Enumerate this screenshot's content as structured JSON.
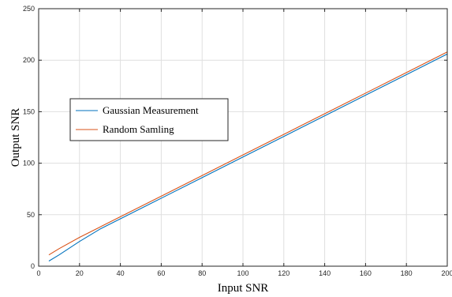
{
  "chart_data": {
    "type": "line",
    "title": "",
    "xlabel": "Input SNR",
    "ylabel": "Output SNR",
    "xlim": [
      0,
      200
    ],
    "ylim": [
      0,
      250
    ],
    "xticks": [
      0,
      20,
      40,
      60,
      80,
      100,
      120,
      140,
      160,
      180,
      200
    ],
    "yticks": [
      0,
      50,
      100,
      150,
      200,
      250
    ],
    "xtick_labels": [
      "0",
      "20",
      "40",
      "60",
      "80",
      "100",
      "120",
      "140",
      "160",
      "180",
      "200"
    ],
    "ytick_labels": [
      "0",
      "50",
      "100",
      "150",
      "200",
      "250"
    ],
    "grid": true,
    "legend_position": "left-middle",
    "series": [
      {
        "name": "Gaussian Measurement",
        "color": "#0072BD",
        "x": [
          5,
          10,
          20,
          30,
          40,
          60,
          80,
          100,
          120,
          140,
          160,
          180,
          200
        ],
        "y": [
          5,
          11,
          24,
          36,
          46,
          66,
          86,
          106,
          126,
          146,
          166,
          186,
          206
        ]
      },
      {
        "name": "Random Samling",
        "color": "#D95319",
        "x": [
          5,
          10,
          20,
          30,
          40,
          60,
          80,
          100,
          120,
          140,
          160,
          180,
          200
        ],
        "y": [
          11,
          17,
          28,
          38,
          48,
          68,
          88,
          108,
          128,
          148,
          168,
          188,
          208
        ]
      }
    ]
  }
}
